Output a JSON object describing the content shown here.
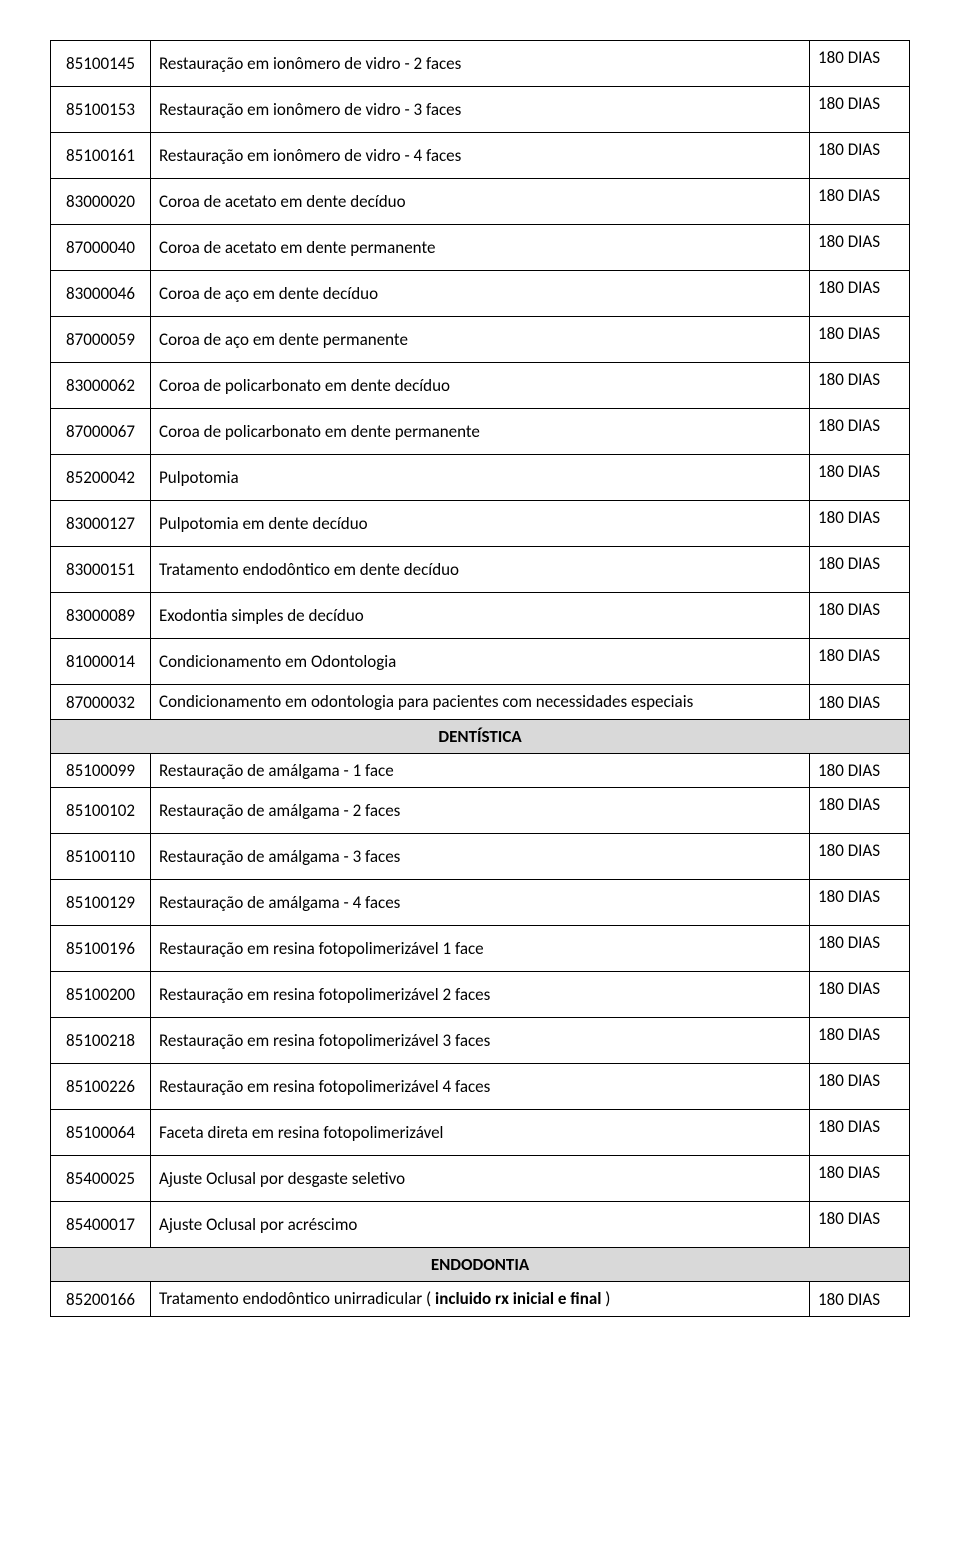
{
  "table": {
    "rows": [
      {
        "code": "85100145",
        "desc": "Restauração em ionômero de vidro - 2 faces",
        "period": "180 DIAS",
        "periodClass": "period"
      },
      {
        "code": "85100153",
        "desc": "Restauração em ionômero de vidro - 3 faces",
        "period": "180 DIAS",
        "periodClass": "period"
      },
      {
        "code": "85100161",
        "desc": "Restauração em ionômero de vidro - 4 faces",
        "period": "180 DIAS",
        "periodClass": "period"
      },
      {
        "code": "83000020",
        "desc": "Coroa de acetato em dente decíduo",
        "period": "180 DIAS",
        "periodClass": "period"
      },
      {
        "code": "87000040",
        "desc": "Coroa de acetato em dente permanente",
        "period": "180 DIAS",
        "periodClass": "period"
      },
      {
        "code": "83000046",
        "desc": "Coroa de aço em dente decíduo",
        "period": "180 DIAS",
        "periodClass": "period"
      },
      {
        "code": "87000059",
        "desc": "Coroa de aço em dente permanente",
        "period": "180 DIAS",
        "periodClass": "period"
      },
      {
        "code": "83000062",
        "desc": "Coroa de policarbonato em dente decíduo",
        "period": "180 DIAS",
        "periodClass": "period"
      },
      {
        "code": "87000067",
        "desc": "Coroa de policarbonato em dente permanente",
        "period": "180 DIAS",
        "periodClass": "period"
      },
      {
        "code": "85200042",
        "desc": "Pulpotomia",
        "period": "180 DIAS",
        "periodClass": "period"
      },
      {
        "code": "83000127",
        "desc": "Pulpotomia em dente decíduo",
        "period": "180 DIAS",
        "periodClass": "period"
      },
      {
        "code": "83000151",
        "desc": "Tratamento endodôntico em dente decíduo",
        "period": "180 DIAS",
        "periodClass": "period"
      },
      {
        "code": "83000089",
        "desc": "Exodontia simples de decíduo",
        "period": "180 DIAS",
        "periodClass": "period"
      },
      {
        "code": "81000014",
        "desc": "Condicionamento em Odontologia",
        "period": "180 DIAS",
        "periodClass": "period"
      },
      {
        "code": "87000032",
        "desc": "Condicionamento em odontologia para pacientes com necessidades especiais",
        "period": "180 DIAS",
        "periodClass": "period-short",
        "descClass": "desc-multiline"
      }
    ],
    "section1": "DENTÍSTICA",
    "rows2": [
      {
        "code": "85100099",
        "desc": "Restauração de amálgama  - 1 face",
        "period": "180 DIAS",
        "periodClass": "period-short"
      },
      {
        "code": "85100102",
        "desc": "Restauração de amálgama - 2 faces",
        "period": "180 DIAS",
        "periodClass": "period"
      },
      {
        "code": "85100110",
        "desc": "Restauração de amálgama - 3 faces",
        "period": "180 DIAS",
        "periodClass": "period"
      },
      {
        "code": "85100129",
        "desc": "Restauração de amálgama - 4 faces",
        "period": "180 DIAS",
        "periodClass": "period"
      },
      {
        "code": "85100196",
        "desc": "Restauração em resina fotopolimerizável  1 face",
        "period": "180 DIAS",
        "periodClass": "period"
      },
      {
        "code": "85100200",
        "desc": "Restauração em resina fotopolimerizável  2 faces",
        "period": "180 DIAS",
        "periodClass": "period"
      },
      {
        "code": "85100218",
        "desc": "Restauração em resina fotopolimerizável  3 faces",
        "period": "180 DIAS",
        "periodClass": "period"
      },
      {
        "code": "85100226",
        "desc": "Restauração em resina fotopolimerizável  4 faces",
        "period": "180 DIAS",
        "periodClass": "period"
      },
      {
        "code": "85100064",
        "desc": "Faceta direta em resina fotopolimerizável",
        "period": "180 DIAS",
        "periodClass": "period"
      },
      {
        "code": "85400025",
        "desc": "Ajuste Oclusal por desgaste seletivo",
        "period": "180 DIAS",
        "periodClass": "period"
      },
      {
        "code": "85400017",
        "desc": "Ajuste Oclusal por acréscimo",
        "period": "180 DIAS",
        "periodClass": "period"
      }
    ],
    "section2": "ENDODONTIA",
    "rows3": [
      {
        "code": "85200166",
        "desc": "Tratamento endodôntico unirradicular ( incluido rx inicial e final )",
        "period": "180 DIAS",
        "periodClass": "period-short",
        "descClass": "desc-multiline"
      }
    ]
  },
  "styling": {
    "font_family": "Calibri, Arial, sans-serif",
    "font_size": 17,
    "border_color": "#000000",
    "background_color": "#ffffff",
    "section_bg": "#d9d9d9",
    "text_color": "#000000",
    "col_widths": {
      "code": 100,
      "period": 100
    }
  }
}
